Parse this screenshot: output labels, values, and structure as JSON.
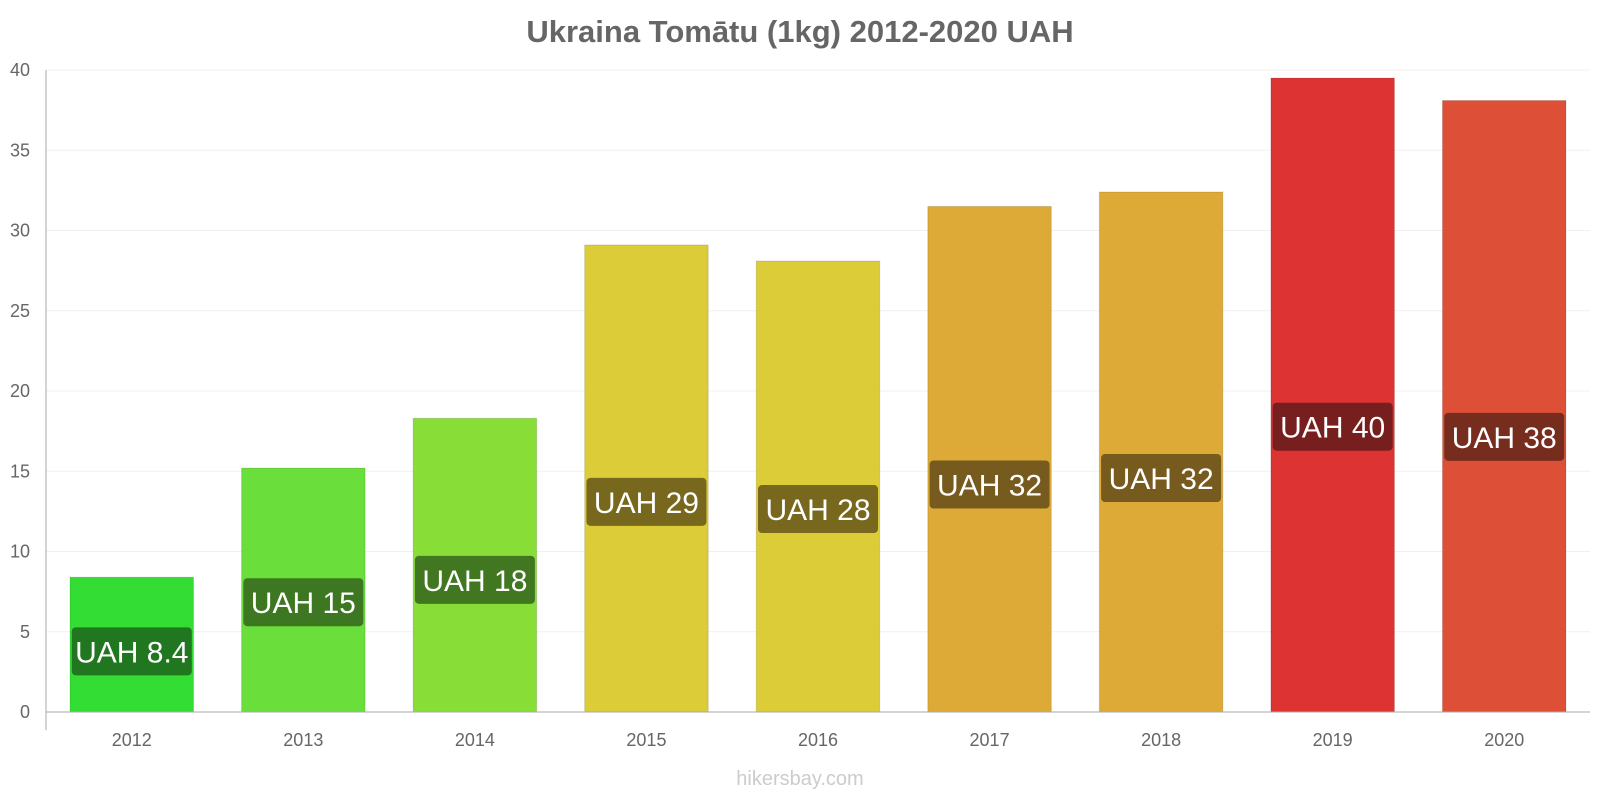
{
  "chart_data": {
    "type": "bar",
    "title": "Ukraina Tomātu (1kg) 2012-2020 UAH",
    "xlabel": "",
    "ylabel": "",
    "ylim": [
      0,
      40
    ],
    "yticks": [
      0,
      5,
      10,
      15,
      20,
      25,
      30,
      35,
      40
    ],
    "grid": true,
    "categories": [
      "2012",
      "2013",
      "2014",
      "2015",
      "2016",
      "2017",
      "2018",
      "2019",
      "2020"
    ],
    "values": [
      8.4,
      15.2,
      18.3,
      29.1,
      28.1,
      31.5,
      32.4,
      39.5,
      38.1
    ],
    "data_labels": [
      "UAH 8.4",
      "UAH 15",
      "UAH 18",
      "UAH 29",
      "UAH 28",
      "UAH 32",
      "UAH 32",
      "UAH 40",
      "UAH 38"
    ],
    "colors": [
      "#33dd33",
      "#6ade3a",
      "#88dd37",
      "#dccc37",
      "#dccc37",
      "#ddaa37",
      "#ddaa37",
      "#dd3333",
      "#dd5037"
    ],
    "label_box_colors": [
      "#1e6e1e",
      "#3b6e20",
      "#3b6e20",
      "#6e601c",
      "#6e601c",
      "#6e551c",
      "#6e551c",
      "#6e1c1c",
      "#6e2a1c"
    ]
  },
  "watermark": "hikersbay.com"
}
